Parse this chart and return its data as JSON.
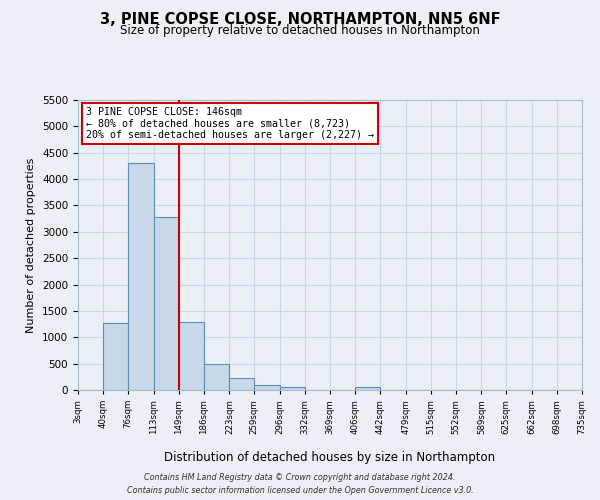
{
  "title": "3, PINE COPSE CLOSE, NORTHAMPTON, NN5 6NF",
  "subtitle": "Size of property relative to detached houses in Northampton",
  "xlabel": "Distribution of detached houses by size in Northampton",
  "ylabel": "Number of detached properties",
  "bin_edges": [
    3,
    40,
    76,
    113,
    149,
    186,
    223,
    259,
    296,
    332,
    369,
    406,
    442,
    479,
    515,
    552,
    589,
    625,
    662,
    698,
    735
  ],
  "bin_labels": [
    "3sqm",
    "40sqm",
    "76sqm",
    "113sqm",
    "149sqm",
    "186sqm",
    "223sqm",
    "259sqm",
    "296sqm",
    "332sqm",
    "369sqm",
    "406sqm",
    "442sqm",
    "479sqm",
    "515sqm",
    "552sqm",
    "589sqm",
    "625sqm",
    "662sqm",
    "698sqm",
    "735sqm"
  ],
  "counts": [
    0,
    1270,
    4300,
    3290,
    1290,
    490,
    230,
    90,
    60,
    0,
    0,
    50,
    0,
    0,
    0,
    0,
    0,
    0,
    0,
    0
  ],
  "bar_color": "#c8d8e8",
  "bar_edge_color": "#5b8db8",
  "property_line_x": 149,
  "property_line_color": "#cc0000",
  "annotation_title": "3 PINE COPSE CLOSE: 146sqm",
  "annotation_line1": "← 80% of detached houses are smaller (8,723)",
  "annotation_line2": "20% of semi-detached houses are larger (2,227) →",
  "annotation_box_color": "white",
  "annotation_box_edge_color": "#cc0000",
  "ylim": [
    0,
    5500
  ],
  "yticks": [
    0,
    500,
    1000,
    1500,
    2000,
    2500,
    3000,
    3500,
    4000,
    4500,
    5000,
    5500
  ],
  "grid_color": "#c8d8e8",
  "bg_color": "#eaf0f6",
  "footer_line1": "Contains HM Land Registry data © Crown copyright and database right 2024.",
  "footer_line2": "Contains public sector information licensed under the Open Government Licence v3.0."
}
